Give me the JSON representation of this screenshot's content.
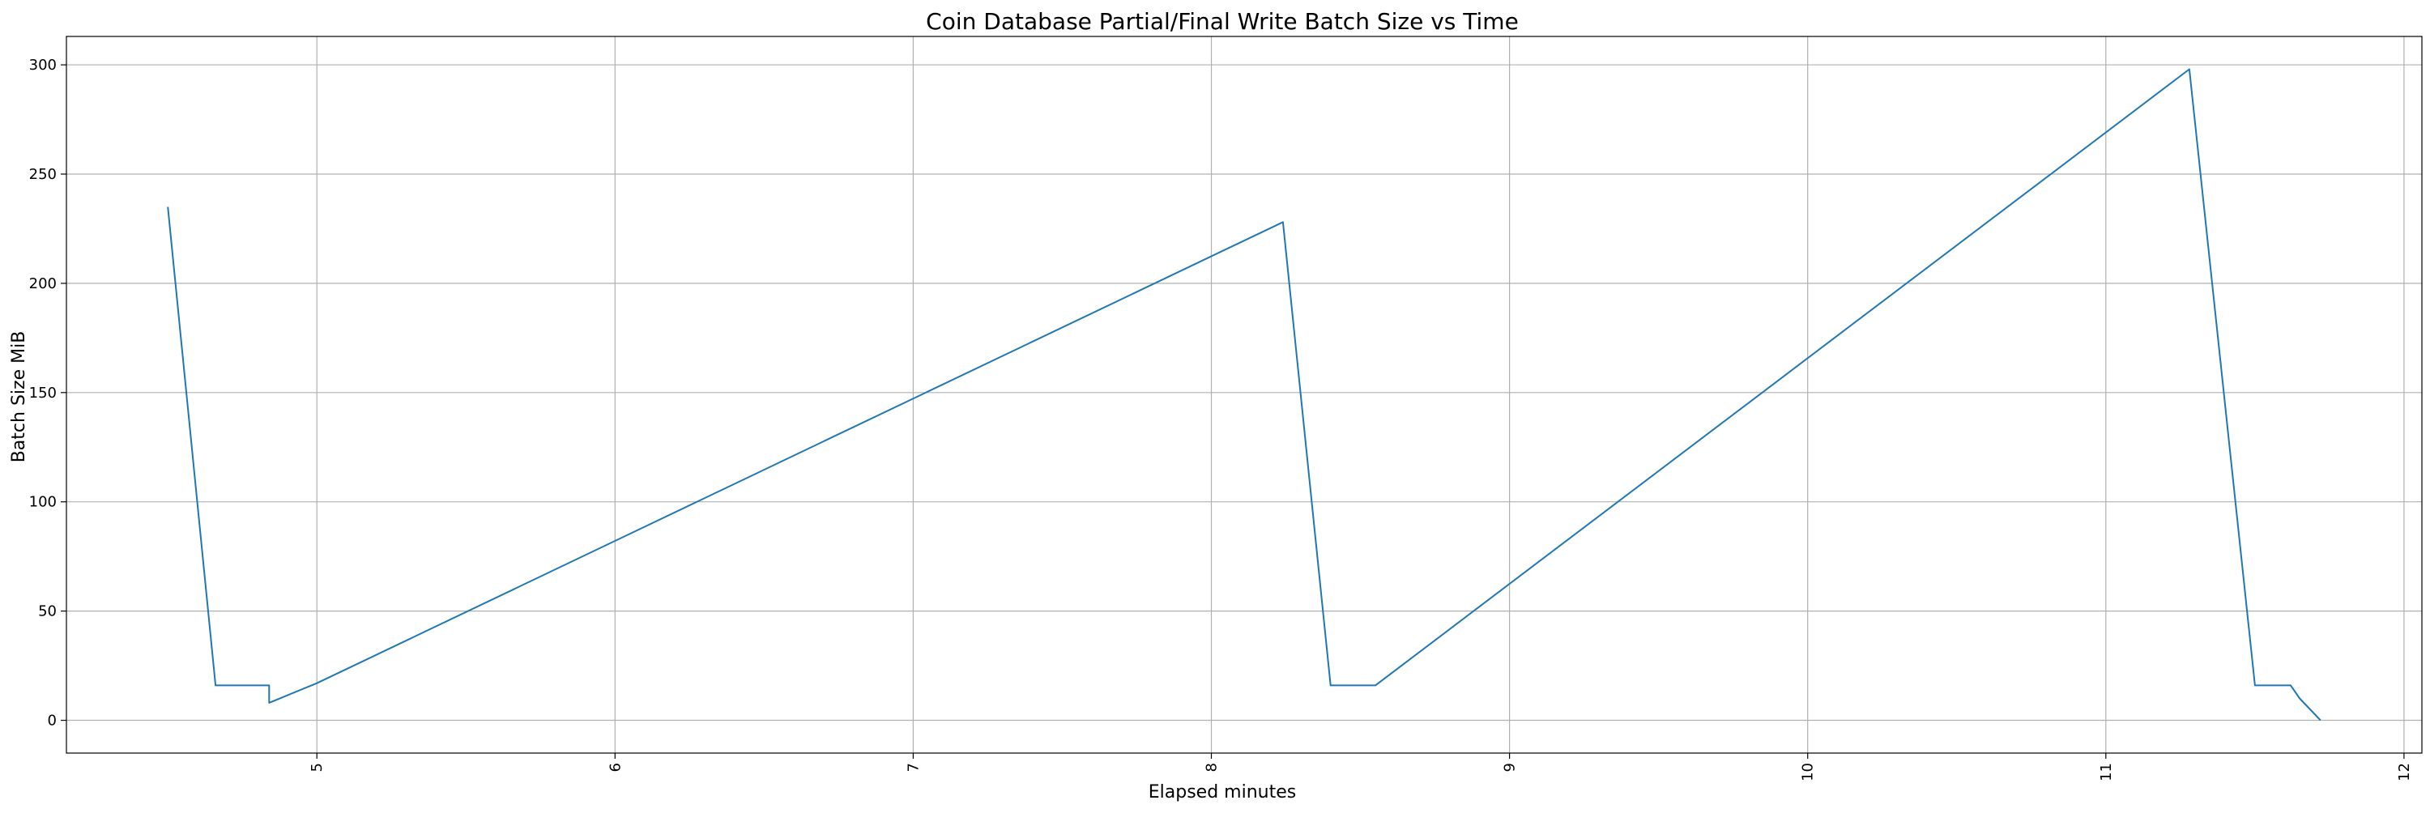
{
  "chart_data": {
    "type": "line",
    "title": "Coin Database Partial/Final Write Batch Size vs Time",
    "xlabel": "Elapsed minutes",
    "ylabel": "Batch Size MiB",
    "xlim": [
      4.16,
      12.06
    ],
    "ylim": [
      -15,
      313
    ],
    "xticks": [
      5,
      6,
      7,
      8,
      9,
      10,
      11,
      12
    ],
    "yticks": [
      0,
      50,
      100,
      150,
      200,
      250,
      300
    ],
    "grid": true,
    "series": [
      {
        "color": "#1f77b4",
        "x": [
          4.5,
          4.66,
          4.84,
          4.84,
          5.0,
          8.24,
          8.4,
          8.55,
          8.55,
          11.28,
          11.5,
          11.62,
          11.65,
          11.72
        ],
        "y": [
          235,
          16,
          16,
          8,
          17,
          228,
          16,
          16,
          16,
          298,
          16,
          16,
          10,
          0
        ]
      }
    ]
  }
}
